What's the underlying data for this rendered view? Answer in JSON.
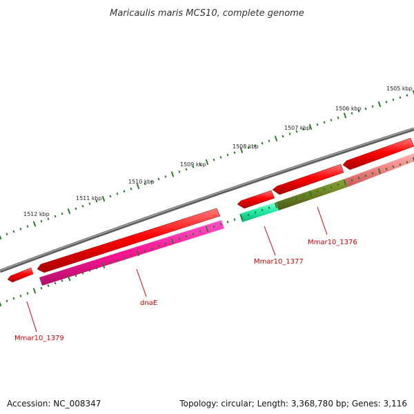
{
  "title": "Maricaulis maris MCS10, complete genome",
  "footer": {
    "accession": "Accession: NC_008347",
    "summary": "Topology: circular; Length: 3,368,780 bp; Genes: 3,116"
  },
  "colors": {
    "backbone": "#777777",
    "tick": "#2a7a2a",
    "gene_red": "#e60000",
    "label": "#cc0000"
  },
  "kbp_ticks": [
    {
      "label": "1512 kbp"
    },
    {
      "label": "1511 kbp"
    },
    {
      "label": "1510 kbp"
    },
    {
      "label": "1509 kbp"
    },
    {
      "label": "1508 kbp"
    },
    {
      "label": "1507 kbp"
    },
    {
      "label": "1506 kbp"
    },
    {
      "label": "1505 kbp"
    }
  ],
  "genes": [
    {
      "name": "Mmar10_1379"
    },
    {
      "name": "dnaE"
    },
    {
      "name": "Mmar10_1377"
    },
    {
      "name": "Mmar10_1376"
    }
  ]
}
